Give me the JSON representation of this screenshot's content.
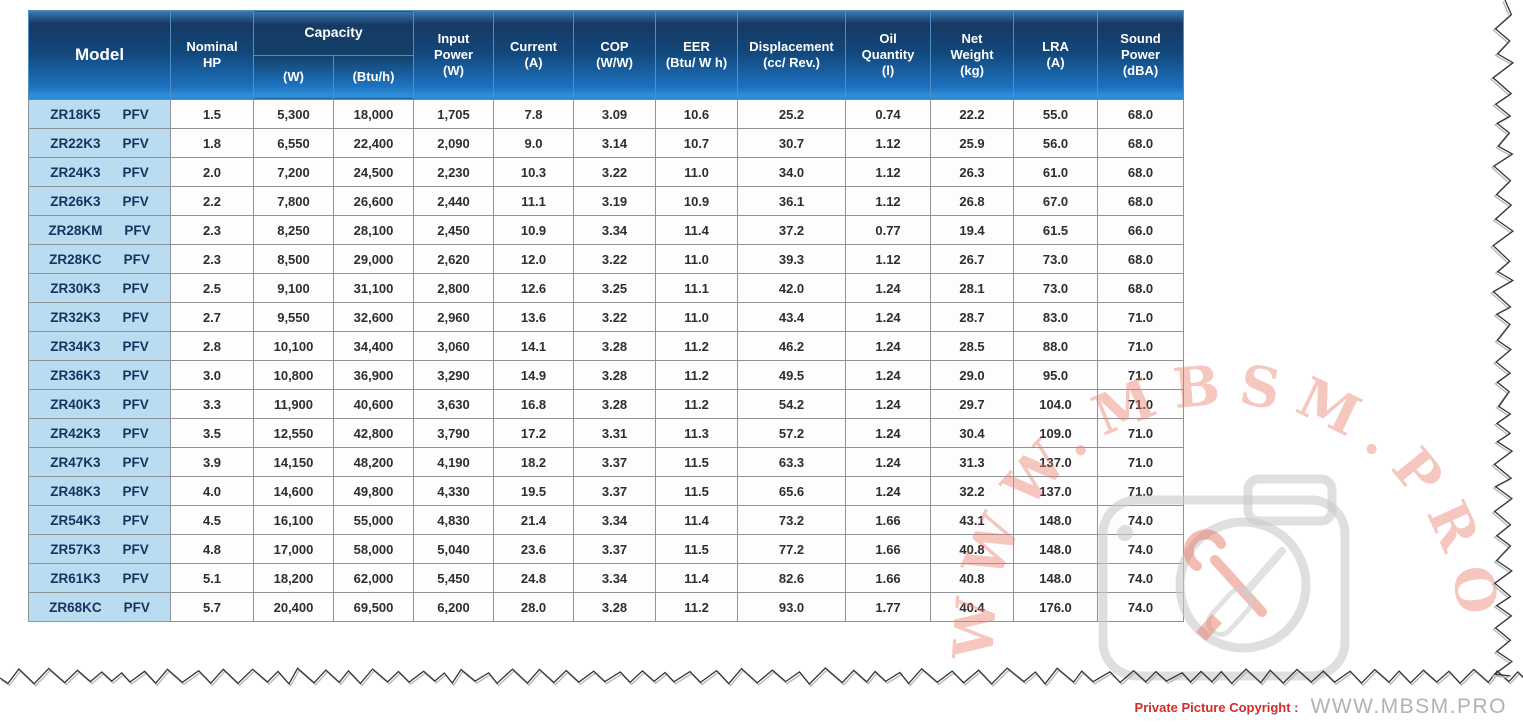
{
  "table": {
    "header": {
      "model": "Model",
      "nominal_hp": "Nominal\nHP",
      "capacity": "Capacity",
      "capacity_w": "(W)",
      "capacity_btuh": "(Btu/h)",
      "input_power": "Input\nPower\n(W)",
      "current": "Current\n(A)",
      "cop": "COP\n(W/W)",
      "eer": "EER\n(Btu/ W h)",
      "displacement": "Displacement\n(cc/ Rev.)",
      "oil_quantity": "Oil\nQuantity\n(l)",
      "net_weight": "Net\nWeight\n(kg)",
      "lra": "LRA\n(A)",
      "sound_power": "Sound\nPower\n(dBA)"
    },
    "rows": [
      {
        "model": "ZR18K5",
        "suffix": "PFV",
        "values": [
          "1.5",
          "5,300",
          "18,000",
          "1,705",
          "7.8",
          "3.09",
          "10.6",
          "25.2",
          "0.74",
          "22.2",
          "55.0",
          "68.0"
        ]
      },
      {
        "model": "ZR22K3",
        "suffix": "PFV",
        "values": [
          "1.8",
          "6,550",
          "22,400",
          "2,090",
          "9.0",
          "3.14",
          "10.7",
          "30.7",
          "1.12",
          "25.9",
          "56.0",
          "68.0"
        ]
      },
      {
        "model": "ZR24K3",
        "suffix": "PFV",
        "values": [
          "2.0",
          "7,200",
          "24,500",
          "2,230",
          "10.3",
          "3.22",
          "11.0",
          "34.0",
          "1.12",
          "26.3",
          "61.0",
          "68.0"
        ]
      },
      {
        "model": "ZR26K3",
        "suffix": "PFV",
        "values": [
          "2.2",
          "7,800",
          "26,600",
          "2,440",
          "11.1",
          "3.19",
          "10.9",
          "36.1",
          "1.12",
          "26.8",
          "67.0",
          "68.0"
        ]
      },
      {
        "model": "ZR28KM",
        "suffix": "PFV",
        "values": [
          "2.3",
          "8,250",
          "28,100",
          "2,450",
          "10.9",
          "3.34",
          "11.4",
          "37.2",
          "0.77",
          "19.4",
          "61.5",
          "66.0"
        ]
      },
      {
        "model": "ZR28KC",
        "suffix": "PFV",
        "values": [
          "2.3",
          "8,500",
          "29,000",
          "2,620",
          "12.0",
          "3.22",
          "11.0",
          "39.3",
          "1.12",
          "26.7",
          "73.0",
          "68.0"
        ]
      },
      {
        "model": "ZR30K3",
        "suffix": "PFV",
        "values": [
          "2.5",
          "9,100",
          "31,100",
          "2,800",
          "12.6",
          "3.25",
          "11.1",
          "42.0",
          "1.24",
          "28.1",
          "73.0",
          "68.0"
        ]
      },
      {
        "model": "ZR32K3",
        "suffix": "PFV",
        "values": [
          "2.7",
          "9,550",
          "32,600",
          "2,960",
          "13.6",
          "3.22",
          "11.0",
          "43.4",
          "1.24",
          "28.7",
          "83.0",
          "71.0"
        ]
      },
      {
        "model": "ZR34K3",
        "suffix": "PFV",
        "values": [
          "2.8",
          "10,100",
          "34,400",
          "3,060",
          "14.1",
          "3.28",
          "11.2",
          "46.2",
          "1.24",
          "28.5",
          "88.0",
          "71.0"
        ]
      },
      {
        "model": "ZR36K3",
        "suffix": "PFV",
        "values": [
          "3.0",
          "10,800",
          "36,900",
          "3,290",
          "14.9",
          "3.28",
          "11.2",
          "49.5",
          "1.24",
          "29.0",
          "95.0",
          "71.0"
        ]
      },
      {
        "model": "ZR40K3",
        "suffix": "PFV",
        "values": [
          "3.3",
          "11,900",
          "40,600",
          "3,630",
          "16.8",
          "3.28",
          "11.2",
          "54.2",
          "1.24",
          "29.7",
          "104.0",
          "71.0"
        ]
      },
      {
        "model": "ZR42K3",
        "suffix": "PFV",
        "values": [
          "3.5",
          "12,550",
          "42,800",
          "3,790",
          "17.2",
          "3.31",
          "11.3",
          "57.2",
          "1.24",
          "30.4",
          "109.0",
          "71.0"
        ]
      },
      {
        "model": "ZR47K3",
        "suffix": "PFV",
        "values": [
          "3.9",
          "14,150",
          "48,200",
          "4,190",
          "18.2",
          "3.37",
          "11.5",
          "63.3",
          "1.24",
          "31.3",
          "137.0",
          "71.0"
        ]
      },
      {
        "model": "ZR48K3",
        "suffix": "PFV",
        "values": [
          "4.0",
          "14,600",
          "49,800",
          "4,330",
          "19.5",
          "3.37",
          "11.5",
          "65.6",
          "1.24",
          "32.2",
          "137.0",
          "71.0"
        ]
      },
      {
        "model": "ZR54K3",
        "suffix": "PFV",
        "values": [
          "4.5",
          "16,100",
          "55,000",
          "4,830",
          "21.4",
          "3.34",
          "11.4",
          "73.2",
          "1.66",
          "43.1",
          "148.0",
          "74.0"
        ]
      },
      {
        "model": "ZR57K3",
        "suffix": "PFV",
        "values": [
          "4.8",
          "17,000",
          "58,000",
          "5,040",
          "23.6",
          "3.37",
          "11.5",
          "77.2",
          "1.66",
          "40.8",
          "148.0",
          "74.0"
        ]
      },
      {
        "model": "ZR61K3",
        "suffix": "PFV",
        "values": [
          "5.1",
          "18,200",
          "62,000",
          "5,450",
          "24.8",
          "3.34",
          "11.4",
          "82.6",
          "1.66",
          "40.8",
          "148.0",
          "74.0"
        ]
      },
      {
        "model": "ZR68KC",
        "suffix": "PFV",
        "values": [
          "5.7",
          "20,400",
          "69,500",
          "6,200",
          "28.0",
          "3.28",
          "11.2",
          "93.0",
          "1.77",
          "40.4",
          "176.0",
          "74.0"
        ]
      }
    ]
  },
  "watermark": {
    "arc_text": "WWW.MBSM.PRO",
    "arc_color": "#e87a66",
    "camera_icon": "camera-with-crossed-wrench-and-screwdriver-icon",
    "camera_color": "#c9c9c9"
  },
  "footer": {
    "copyright_label": "Private Picture Copyright :",
    "site": "WWW.MBSM.PRO",
    "strip_color": "#f5dcdc"
  },
  "colors": {
    "header_gradient_top": "#163a63",
    "header_gradient_bottom": "#2f8fd9",
    "model_cell_bg": "#b9dcf0",
    "model_text": "#17335f"
  }
}
